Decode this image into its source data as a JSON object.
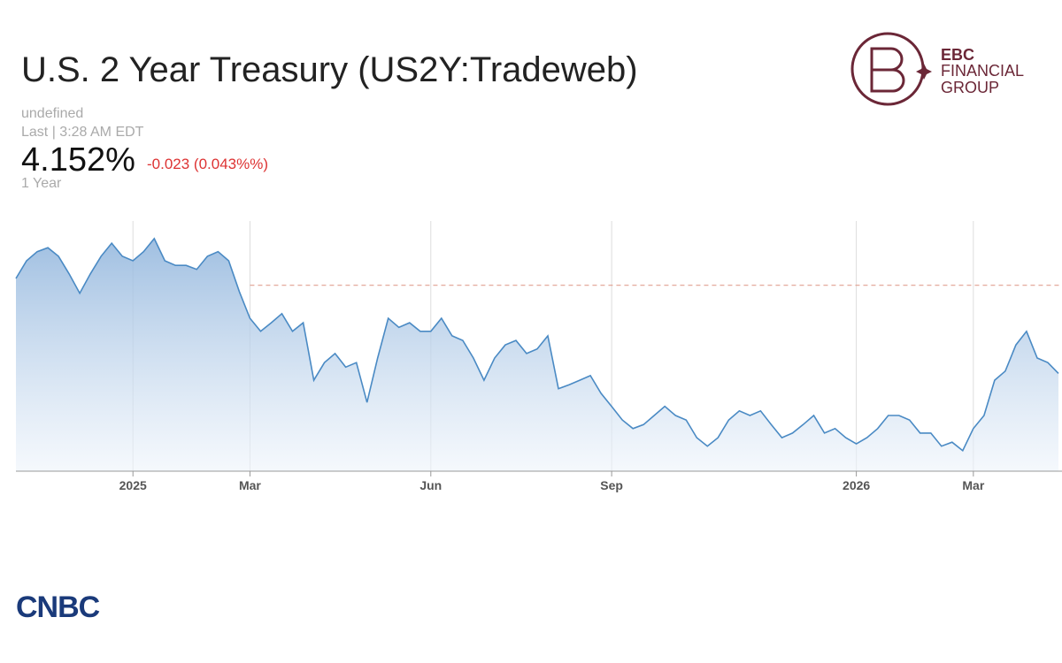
{
  "chart_data": {
    "type": "line",
    "title": "U.S. 2 Year Treasury (US2Y:Tradeweb)",
    "subtitle": "undefined",
    "last_label": "Last | 3:28 AM EDT",
    "price": "4.152%",
    "change": "-0.023 (0.043%%)",
    "range": "1 Year",
    "watermark": "CNBC",
    "source": "CNBC",
    "brand": [
      "EBC",
      "FINANCIAL",
      "GROUP"
    ],
    "color": "#4a8ac4",
    "reference_line": 4.307,
    "reference_color": "#e0a090",
    "ylim": [
      3.98,
      4.42
    ],
    "categories": [
      null,
      null,
      null,
      null,
      null,
      null,
      null,
      null,
      null,
      null,
      null,
      "2025",
      null,
      null,
      null,
      null,
      null,
      null,
      null,
      null,
      null,
      null,
      "Mar",
      null,
      null,
      null,
      null,
      null,
      null,
      null,
      null,
      null,
      null,
      null,
      null,
      null,
      null,
      null,
      null,
      "Jun",
      null,
      null,
      null,
      null,
      null,
      null,
      null,
      null,
      null,
      null,
      null,
      null,
      null,
      null,
      null,
      null,
      "Sep",
      null,
      null,
      null,
      null,
      null,
      null,
      null,
      null,
      null,
      null,
      null,
      null,
      null,
      null,
      null,
      null,
      null,
      null,
      null,
      null,
      null,
      null,
      "2026",
      null,
      null,
      null,
      null,
      null,
      null,
      null,
      null,
      null,
      null,
      "Mar",
      null,
      null,
      null,
      null,
      null,
      null,
      null,
      null
    ],
    "values": [
      4.319,
      4.35,
      4.366,
      4.373,
      4.358,
      4.327,
      4.293,
      4.327,
      4.358,
      4.381,
      4.358,
      4.35,
      4.366,
      4.389,
      4.35,
      4.342,
      4.342,
      4.335,
      4.358,
      4.366,
      4.35,
      4.296,
      4.249,
      4.226,
      4.241,
      4.257,
      4.226,
      4.241,
      4.14,
      4.171,
      4.187,
      4.163,
      4.171,
      4.101,
      4.179,
      4.249,
      4.233,
      4.241,
      4.226,
      4.226,
      4.249,
      4.218,
      4.21,
      4.179,
      4.14,
      4.179,
      4.202,
      4.21,
      4.187,
      4.195,
      4.218,
      4.125,
      4.132,
      4.14,
      4.148,
      4.117,
      4.094,
      4.07,
      4.055,
      4.062,
      4.078,
      4.094,
      4.078,
      4.07,
      4.039,
      4.024,
      4.039,
      4.07,
      4.086,
      4.078,
      4.086,
      4.062,
      4.039,
      4.047,
      4.062,
      4.078,
      4.047,
      4.055,
      4.039,
      4.028,
      4.039,
      4.055,
      4.078,
      4.078,
      4.07,
      4.047,
      4.047,
      4.024,
      4.031,
      4.016,
      4.055,
      4.078,
      4.14,
      4.156,
      4.202,
      4.226,
      4.179,
      4.171,
      4.152
    ]
  }
}
